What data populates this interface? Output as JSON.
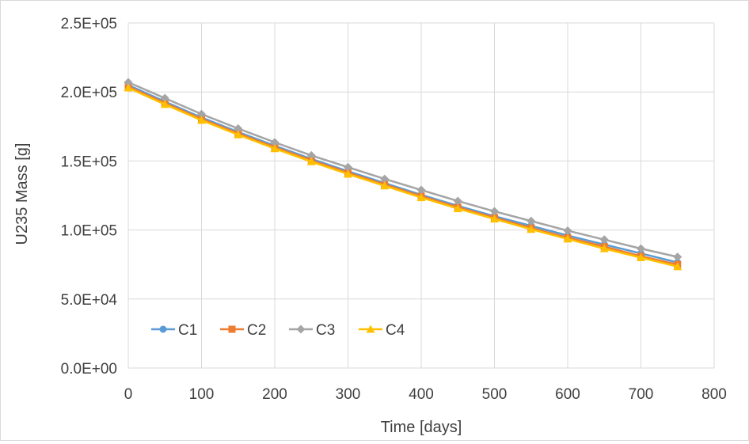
{
  "chart_data": {
    "type": "line",
    "title": "",
    "xlabel": "Time [days]",
    "ylabel": "U235 Mass [g]",
    "xlim": [
      0,
      800
    ],
    "ylim": [
      0,
      250000
    ],
    "xticks": [
      0,
      100,
      200,
      300,
      400,
      500,
      600,
      700,
      800
    ],
    "xtick_labels": [
      "0",
      "100",
      "200",
      "300",
      "400",
      "500",
      "600",
      "700",
      "800"
    ],
    "yticks": [
      0,
      50000,
      100000,
      150000,
      200000,
      250000
    ],
    "ytick_labels": [
      "0.0E+00",
      "5.0E+04",
      "1.0E+05",
      "1.5E+05",
      "2.0E+05",
      "2.5E+05"
    ],
    "grid": true,
    "legend_position": "bottom-left",
    "x": [
      0,
      50,
      100,
      150,
      200,
      250,
      300,
      350,
      400,
      450,
      500,
      550,
      600,
      650,
      700,
      750
    ],
    "series": [
      {
        "name": "C1",
        "color": "#5b9bd5",
        "marker": "circle",
        "values": [
          205000,
          193000,
          181500,
          171000,
          161000,
          151500,
          142500,
          134000,
          125500,
          117500,
          110000,
          103000,
          96000,
          89500,
          83000,
          76500
        ]
      },
      {
        "name": "C2",
        "color": "#ed7d31",
        "marker": "square",
        "values": [
          204000,
          192000,
          180500,
          170000,
          160000,
          150500,
          141500,
          133000,
          124500,
          116500,
          109000,
          101500,
          94500,
          88000,
          81000,
          75000
        ]
      },
      {
        "name": "C3",
        "color": "#a5a5a5",
        "marker": "diamond",
        "values": [
          207000,
          195500,
          184000,
          173500,
          163500,
          154000,
          145500,
          137000,
          129000,
          121000,
          113500,
          106500,
          99500,
          93000,
          86500,
          80500
        ]
      },
      {
        "name": "C4",
        "color": "#ffc000",
        "marker": "triangle",
        "values": [
          203000,
          191000,
          179500,
          169000,
          159000,
          149500,
          140500,
          132000,
          123500,
          115500,
          108000,
          100500,
          93500,
          86500,
          80000,
          73500
        ]
      }
    ]
  }
}
